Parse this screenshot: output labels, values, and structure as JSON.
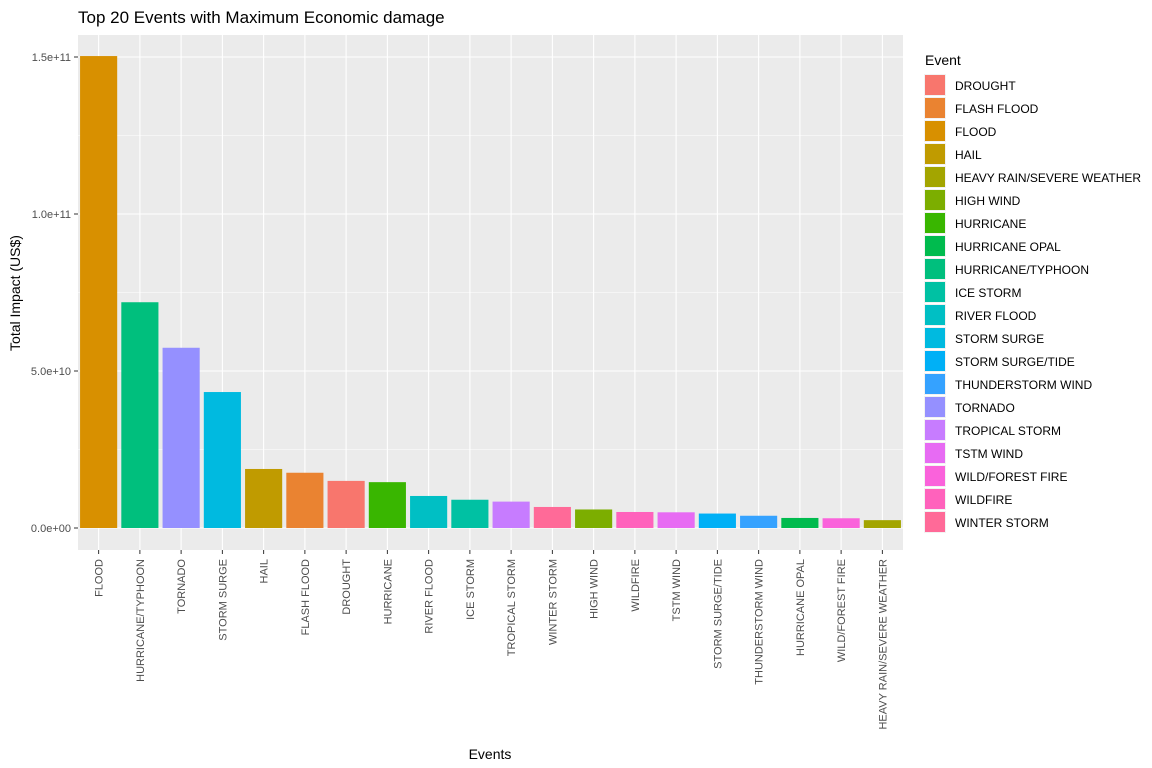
{
  "chart_data": {
    "type": "bar",
    "title": "Top 20 Events with Maximum Economic damage",
    "xlabel": "Events",
    "ylabel": "Total Impact (US$)",
    "ylim": [
      0,
      155000000000
    ],
    "y_ticks": [
      {
        "value": 0,
        "label": "0.0e+00"
      },
      {
        "value": 50000000000,
        "label": "5.0e+10"
      },
      {
        "value": 100000000000,
        "label": "1.0e+11"
      },
      {
        "value": 150000000000,
        "label": "1.5e+11"
      }
    ],
    "categories": [
      "FLOOD",
      "HURRICANE/TYPHOON",
      "TORNADO",
      "STORM SURGE",
      "HAIL",
      "FLASH FLOOD",
      "DROUGHT",
      "HURRICANE",
      "RIVER FLOOD",
      "ICE STORM",
      "TROPICAL STORM",
      "WINTER STORM",
      "HIGH WIND",
      "WILDFIRE",
      "TSTM WIND",
      "STORM SURGE/TIDE",
      "THUNDERSTORM WIND",
      "HURRICANE OPAL",
      "WILD/FOREST FIRE",
      "HEAVY RAIN/SEVERE WEATHER"
    ],
    "values": [
      150300000000,
      71900000000,
      57400000000,
      43300000000,
      18800000000,
      17600000000,
      15000000000,
      14600000000,
      10200000000,
      9000000000,
      8400000000,
      6700000000,
      5900000000,
      5100000000,
      5000000000,
      4600000000,
      3900000000,
      3200000000,
      3100000000,
      2500000000
    ],
    "grid": true,
    "legend": {
      "title": "Event",
      "position": "right",
      "entries": [
        {
          "label": "DROUGHT",
          "color": "#F8766D"
        },
        {
          "label": "FLASH FLOOD",
          "color": "#EA8331"
        },
        {
          "label": "FLOOD",
          "color": "#D89000"
        },
        {
          "label": "HAIL",
          "color": "#C09B00"
        },
        {
          "label": "HEAVY RAIN/SEVERE WEATHER",
          "color": "#A3A500"
        },
        {
          "label": "HIGH WIND",
          "color": "#7CAE00"
        },
        {
          "label": "HURRICANE",
          "color": "#39B600"
        },
        {
          "label": "HURRICANE OPAL",
          "color": "#00BB4E"
        },
        {
          "label": "HURRICANE/TYPHOON",
          "color": "#00BF7D"
        },
        {
          "label": "ICE STORM",
          "color": "#00C1A3"
        },
        {
          "label": "RIVER FLOOD",
          "color": "#00BFC4"
        },
        {
          "label": "STORM SURGE",
          "color": "#00BAE0"
        },
        {
          "label": "STORM SURGE/TIDE",
          "color": "#00B0F6"
        },
        {
          "label": "THUNDERSTORM WIND",
          "color": "#35A2FF"
        },
        {
          "label": "TORNADO",
          "color": "#9590FF"
        },
        {
          "label": "TROPICAL STORM",
          "color": "#C77CFF"
        },
        {
          "label": "TSTM WIND",
          "color": "#E76BF3"
        },
        {
          "label": "WILD/FOREST FIRE",
          "color": "#FA62DB"
        },
        {
          "label": "WILDFIRE",
          "color": "#FF62BC"
        },
        {
          "label": "WINTER STORM",
          "color": "#FF6A98"
        }
      ]
    },
    "colors": {
      "panel_background": "#EBEBEB",
      "grid_major": "#FFFFFF"
    }
  }
}
